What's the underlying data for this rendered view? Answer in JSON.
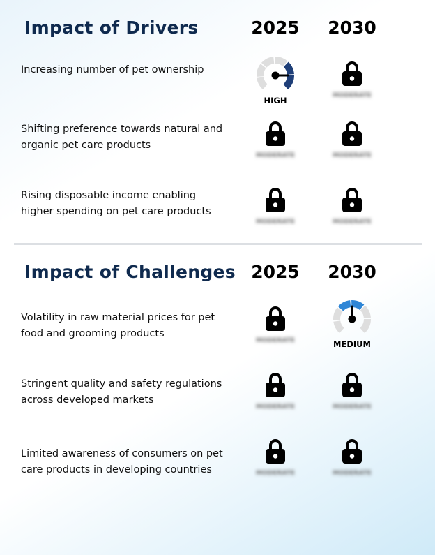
{
  "drivers": {
    "title": "Impact of Drivers",
    "years": [
      "2025",
      "2030"
    ],
    "rows": [
      {
        "label": "Increasing number of pet ownership",
        "cells": [
          {
            "type": "gauge",
            "level": "high",
            "label": "HIGH"
          },
          {
            "type": "locked",
            "hidden_label": "MODERATE"
          }
        ]
      },
      {
        "label": "Shifting preference towards natural and organic pet care products",
        "cells": [
          {
            "type": "locked",
            "hidden_label": "MODERATE"
          },
          {
            "type": "locked",
            "hidden_label": "MODERATE"
          }
        ]
      },
      {
        "label": "Rising disposable income enabling higher spending on pet care products",
        "cells": [
          {
            "type": "locked",
            "hidden_label": "MODERATE"
          },
          {
            "type": "locked",
            "hidden_label": "MODERATE"
          }
        ]
      }
    ]
  },
  "challenges": {
    "title": "Impact of Challenges",
    "years": [
      "2025",
      "2030"
    ],
    "rows": [
      {
        "label": "Volatility in raw material prices for pet food and grooming products",
        "cells": [
          {
            "type": "locked",
            "hidden_label": "MODERATE"
          },
          {
            "type": "gauge",
            "level": "medium",
            "label": "MEDIUM"
          }
        ]
      },
      {
        "label": "Stringent quality and safety regulations across developed markets",
        "cells": [
          {
            "type": "locked",
            "hidden_label": "MODERATE"
          },
          {
            "type": "locked",
            "hidden_label": "MODERATE"
          }
        ]
      },
      {
        "label": "Limited awareness of consumers on pet care products in developing countries",
        "cells": [
          {
            "type": "locked",
            "hidden_label": "MODERATE"
          },
          {
            "type": "locked",
            "hidden_label": "MODERATE"
          }
        ]
      }
    ]
  },
  "colors": {
    "title": "#0f2a4e",
    "gauge_track": "#dedede",
    "gauge_high": "#1f3f78",
    "gauge_medium": "#2f86d6",
    "lock": "#000000",
    "divider": "#dcdfe3"
  },
  "icons": {
    "locked_cell": "lock-icon",
    "gauge_cell": "gauge-icon"
  }
}
